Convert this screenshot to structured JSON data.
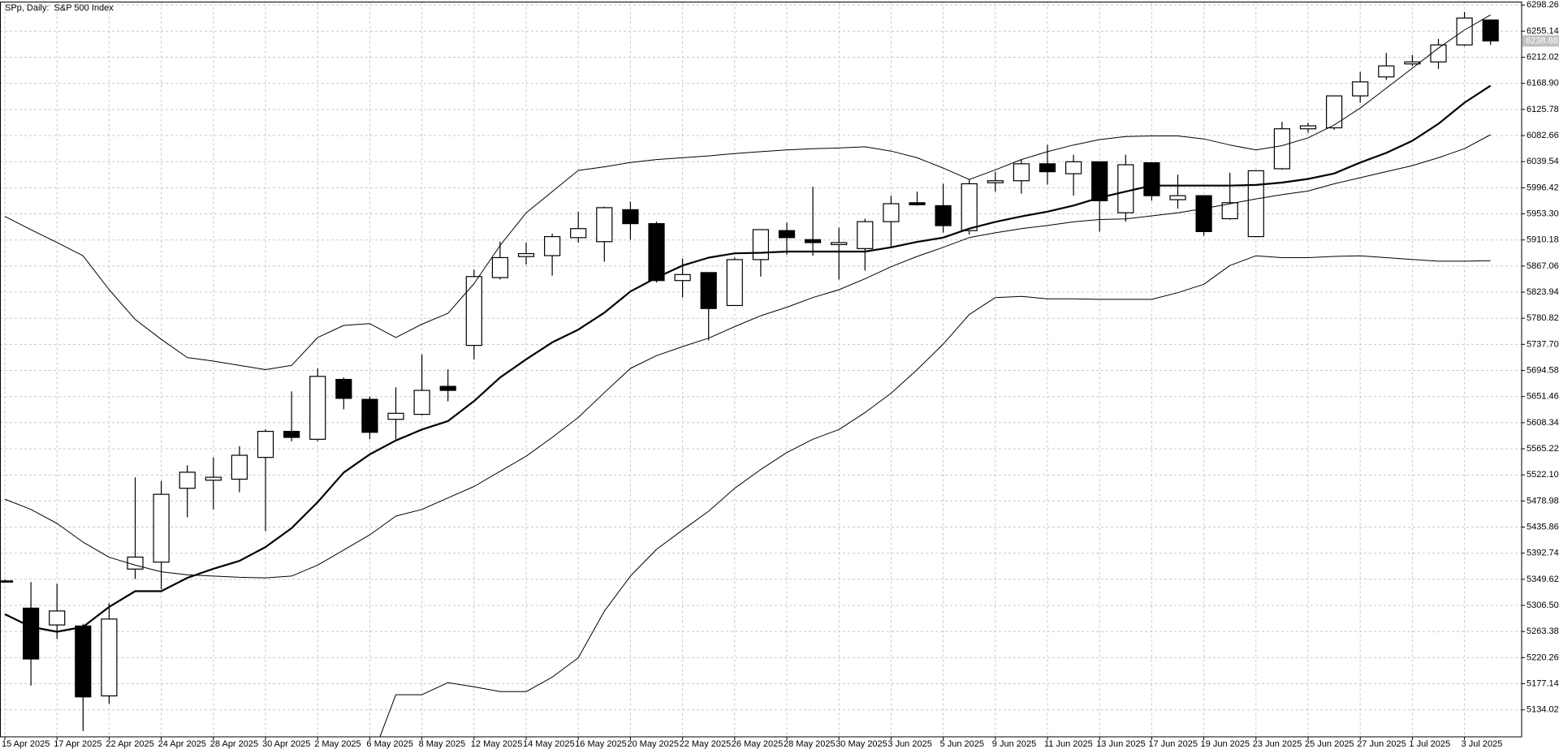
{
  "chart_data": {
    "type": "candlestick",
    "title": "SPp, Daily:  S&P 500 Index",
    "categories": [
      "15 Apr 2025",
      null,
      "17 Apr 2025",
      null,
      "22 Apr 2025",
      null,
      "24 Apr 2025",
      null,
      "28 Apr 2025",
      null,
      "30 Apr 2025",
      null,
      "2 May 2025",
      null,
      "6 May 2025",
      null,
      "8 May 2025",
      null,
      "12 May 2025",
      null,
      "14 May 2025",
      null,
      "16 May 2025",
      null,
      "20 May 2025",
      null,
      "22 May 2025",
      null,
      "26 May 2025",
      null,
      "28 May 2025",
      null,
      "30 May 2025",
      null,
      "3 Jun 2025",
      null,
      "5 Jun 2025",
      null,
      "9 Jun 2025",
      null,
      "11 Jun 2025",
      null,
      "13 Jun 2025",
      null,
      "17 Jun 2025",
      null,
      "19 Jun 2025",
      null,
      "23 Jun 2025",
      null,
      "25 Jun 2025",
      null,
      "27 Jun 2025",
      null,
      "1 Jul 2025",
      null,
      "3 Jul 2025",
      null
    ],
    "open": [
      5347,
      5302,
      5274.2,
      5272.5,
      5157,
      5366.5,
      5378,
      5500,
      5513.3,
      5515,
      5551,
      5594,
      5580.9,
      5679.8,
      5646.9,
      5613.9,
      5622.1,
      5668.3,
      5736,
      5848,
      5882.7,
      5884.3,
      5914,
      5907.4,
      5960.2,
      5937.1,
      5843.1,
      5856.3,
      5801.9,
      5877.7,
      5925.6,
      5910.7,
      5902.5,
      5895.9,
      5940.4,
      5971.7,
      5966.8,
      5925.6,
      6004.7,
      6008,
      6036,
      6019.6,
      6039.3,
      5955.2,
      6037.7,
      5976.7,
      5983.3,
      5945.3,
      5915.7,
      6027.8,
      6093.8,
      6095.4,
      6148.2,
      6179.5,
      6201,
      6204.3,
      6232.3,
      6273.5
    ],
    "high": [
      5349,
      5345,
      5342,
      5276,
      5310,
      5518,
      5512,
      5538,
      5551,
      5569.4,
      5597.4,
      5660,
      5698,
      5683,
      5651.8,
      5666.6,
      5721,
      5696.3,
      5861.3,
      5907.4,
      5905.8,
      5920.6,
      5956.9,
      5965.1,
      5973.4,
      5940.4,
      5879.4,
      5856.3,
      5881,
      5927.2,
      5938.8,
      5998.1,
      5930.5,
      5945.3,
      5983.3,
      5989.9,
      6003,
      6009.7,
      6022.9,
      6042.6,
      6067.4,
      6050.9,
      6039.3,
      6050.9,
      6037.7,
      6017.9,
      5983.3,
      6021.2,
      6024.5,
      6105.3,
      6103.7,
      6148.2,
      6187.8,
      6219.1,
      6215.8,
      6242.2,
      6286.7,
      6273.5
    ],
    "low": [
      5344,
      5174,
      5251,
      5099,
      5144,
      5350,
      5333,
      5452,
      5465,
      5493.5,
      5429,
      5577.6,
      5577.6,
      5630.4,
      5581,
      5581,
      5620.5,
      5643.6,
      5712.8,
      5844.8,
      5869.5,
      5851.3,
      5905.8,
      5874.4,
      5910.7,
      5839.8,
      5815.1,
      5744.1,
      5801.9,
      5849.7,
      5886,
      5884.3,
      5844.8,
      5859.6,
      5899.2,
      5966.8,
      5922.3,
      5919,
      5989.9,
      5986.6,
      6001.4,
      5983.3,
      5924,
      5940.4,
      5975,
      5961.8,
      5917.3,
      5943.7,
      5915.7,
      6026.2,
      6087.2,
      6092.1,
      6136.6,
      6174.6,
      6197.7,
      6192.7,
      6230.6,
      6232.3
    ],
    "close": [
      5346,
      5218,
      5297.3,
      5155.4,
      5284,
      5386.3,
      5490,
      5526.5,
      5518.2,
      5554.5,
      5594,
      5584,
      5684.8,
      5648.5,
      5592.4,
      5623.8,
      5661.7,
      5661.7,
      5849.7,
      5881,
      5887.6,
      5915.7,
      5928.9,
      5963.5,
      5937.1,
      5843.1,
      5853,
      5796.9,
      5877.7,
      5927.2,
      5914,
      5905.8,
      5905.8,
      5940.4,
      5970.1,
      5968.4,
      5933.8,
      6003,
      6008,
      6036,
      6022.9,
      6039.3,
      5975,
      6034.4,
      5983.3,
      5983.3,
      5924,
      5971.7,
      6024.5,
      6093.8,
      6098.7,
      6148.2,
      6171.3,
      6197.7,
      6204.3,
      6232.3,
      6276.8,
      6238.88
    ],
    "up_color": "#ffffff",
    "down_color": "#000000",
    "series": [
      {
        "color": "#000000",
        "width": 1,
        "values": [
          5949,
          5927,
          5906,
          5884,
          5828,
          5779,
          5746,
          5716,
          5710,
          5703,
          5696,
          5703,
          5749,
          5769,
          5772,
          5749,
          5771,
          5789,
          5838,
          5901,
          5955,
          5990,
          6025,
          6031,
          6038,
          6043,
          6046,
          6049,
          6053,
          6056,
          6059,
          6061,
          6062,
          6064,
          6057,
          6046,
          6029,
          6010,
          6026,
          6043,
          6056,
          6067,
          6076,
          6081,
          6082,
          6082,
          6077,
          6067,
          6059,
          6066,
          6079,
          6100,
          6128,
          6161,
          6194,
          6227,
          6257,
          6282
        ]
      },
      {
        "color": "#000000",
        "width": 1,
        "values": [
          5482,
          5465,
          5442,
          5411,
          5386,
          5373,
          5362,
          5357,
          5355,
          5353,
          5352,
          5355,
          5373,
          5398,
          5423,
          5454,
          5465,
          5484,
          5503,
          5528,
          5553,
          5584,
          5617,
          5658,
          5698,
          5719,
          5734,
          5748,
          5767,
          5785,
          5799,
          5815,
          5828,
          5846,
          5866,
          5883,
          5898,
          5914,
          5922,
          5929,
          5934,
          5940,
          5944,
          5945,
          5950,
          5955,
          5962,
          5970,
          5978,
          5985,
          5991,
          6003,
          6013,
          6023,
          6033,
          6046,
          6061,
          6084
        ]
      },
      {
        "color": "#000000",
        "width": 2.2,
        "values": [
          5292,
          5271,
          5263,
          5271,
          5304,
          5330,
          5330,
          5352,
          5367,
          5380,
          5403,
          5434,
          5477,
          5526,
          5556,
          5579,
          5597,
          5611,
          5644,
          5683,
          5713,
          5741,
          5762,
          5790,
          5825,
          5848,
          5868,
          5881,
          5888,
          5889,
          5891,
          5891,
          5891,
          5891,
          5898,
          5907,
          5914,
          5929,
          5940,
          5949,
          5957,
          5967,
          5980,
          5990,
          6000,
          6000,
          6000,
          6000,
          6001,
          6005,
          6011,
          6020,
          6038,
          6054,
          6074,
          6102,
          6137,
          6165
        ]
      },
      {
        "color": "#000000",
        "width": 1,
        "values": [
          null,
          null,
          null,
          null,
          null,
          null,
          null,
          null,
          null,
          null,
          null,
          null,
          null,
          null,
          5045,
          5159,
          5159,
          5179,
          5172,
          5164,
          5164,
          5188,
          5220,
          5297,
          5355,
          5399,
          5431,
          5462,
          5500,
          5531,
          5559,
          5581,
          5597,
          5625,
          5657,
          5696,
          5738,
          5787,
          5815,
          5817,
          5813,
          5813,
          5812,
          5812,
          5812,
          5823,
          5837,
          5868,
          5884,
          5881,
          5881,
          5883,
          5884,
          5881,
          5878,
          5875,
          5875,
          5876
        ]
      }
    ],
    "ylim": [
      5089.4,
      6303.2
    ],
    "yticks": [
      5134.02,
      5177.14,
      5220.26,
      5263.38,
      {
        "value": 5306.5,
        "label": "5306.50"
      },
      5349.62,
      5392.74,
      5435.86,
      5478.98,
      {
        "value": 5522.1,
        "label": "5522.10"
      },
      5565.22,
      5608.34,
      5651.46,
      5694.58,
      {
        "value": 5737.7,
        "label": "5737.70"
      },
      5780.82,
      5823.94,
      5867.06,
      5910.18,
      {
        "value": 5953.3,
        "label": "5953.30"
      },
      5996.42,
      6039.54,
      6082.66,
      6125.78,
      {
        "value": 6168.9,
        "label": "6168.90"
      },
      6212.02,
      6255.14,
      6298.26
    ],
    "grid": true,
    "grid_color": "#c8c8c8",
    "last_price": 6238.88
  }
}
